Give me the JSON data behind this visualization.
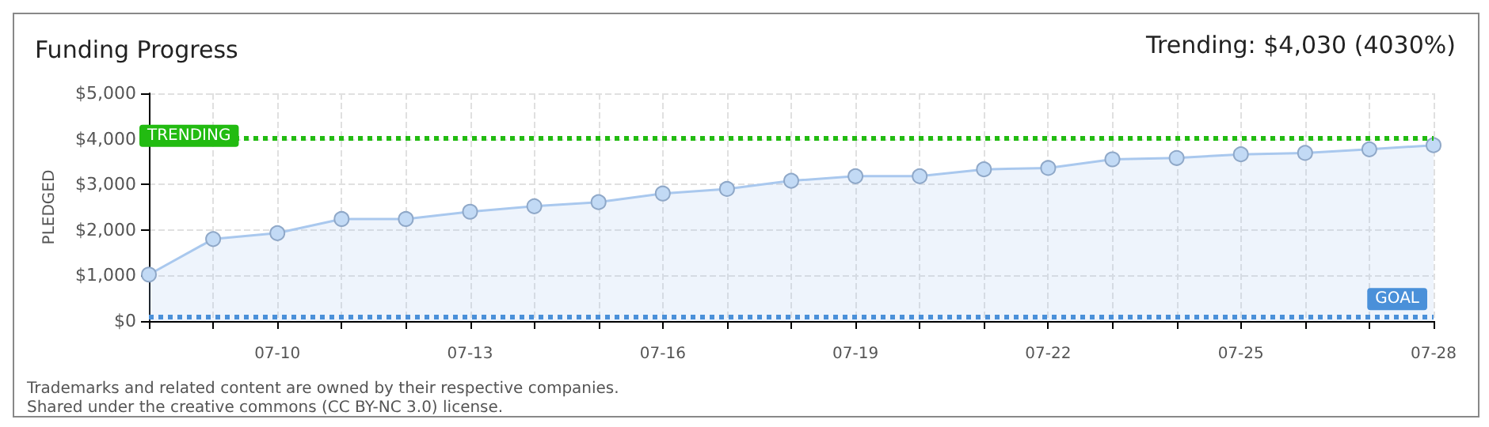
{
  "chart_data": {
    "type": "area",
    "title": "Funding Progress",
    "subtitle": "Trending: $4,030 (4030%)",
    "ylabel": "PLEDGED",
    "categories": [
      null,
      null,
      "07-10",
      null,
      null,
      "07-13",
      null,
      null,
      "07-16",
      null,
      null,
      "07-19",
      null,
      null,
      "07-22",
      null,
      null,
      "07-25",
      null,
      null,
      "07-28"
    ],
    "series": [
      {
        "color": "#a9c8ee",
        "values": [
          1020,
          1800,
          1930,
          2240,
          2240,
          2400,
          2520,
          2610,
          2800,
          2900,
          3080,
          3180,
          3180,
          3330,
          3360,
          3550,
          3580,
          3660,
          3690,
          3770,
          3860
        ]
      }
    ],
    "ylim": [
      0,
      5000
    ],
    "yticks": [
      {
        "value": 0,
        "label": "$0"
      },
      {
        "value": 1000,
        "label": "$1,000"
      },
      {
        "value": 2000,
        "label": "$2,000"
      },
      {
        "value": 3000,
        "label": "$3,000"
      },
      {
        "value": 4000,
        "label": "$4,000"
      },
      {
        "value": 5000,
        "label": "$5,000"
      }
    ],
    "ref_lines": [
      {
        "axis": "y",
        "value": 4030,
        "label": "TRENDING",
        "color": "#22bb11",
        "line_style": "dotted"
      },
      {
        "axis": "y",
        "value": 100,
        "label": "GOAL",
        "color": "#4a90d9",
        "line_style": "dotted"
      }
    ],
    "grid": true,
    "marker": "circle",
    "annotations": [
      "Trademarks and related content are owned by their respective companies.",
      "Shared under the creative commons (CC BY-NC 3.0) license."
    ]
  }
}
